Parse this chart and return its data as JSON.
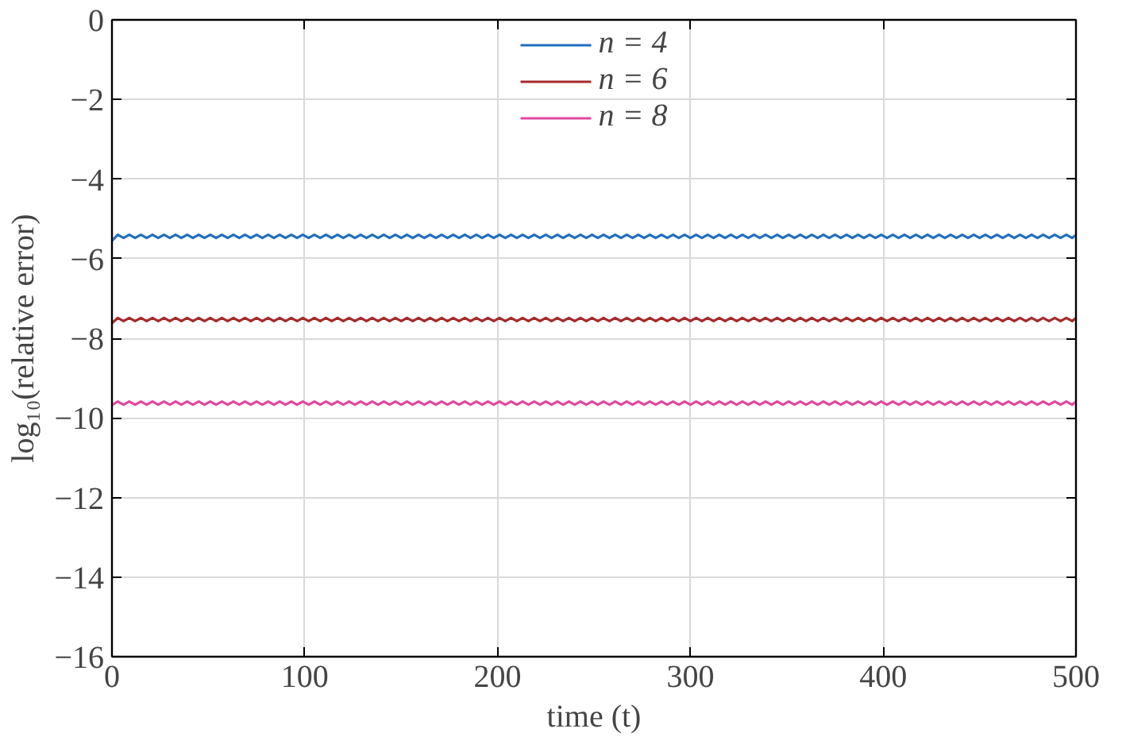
{
  "chart_data": {
    "type": "line",
    "xlabel": "time (t)",
    "ylabel": "log₁₀(relative error)",
    "xlim": [
      0,
      500
    ],
    "ylim": [
      -16,
      0
    ],
    "xticks": [
      0,
      100,
      200,
      300,
      400,
      500
    ],
    "yticks": [
      -16,
      -14,
      -12,
      -10,
      -8,
      -6,
      -4,
      -2,
      0
    ],
    "grid": true,
    "legend": "top",
    "line_style": "solid",
    "marker": "none",
    "x": [
      0,
      3,
      6,
      9,
      12,
      15,
      18,
      21,
      24,
      27,
      30,
      33,
      36,
      39,
      42,
      45,
      48,
      51,
      54,
      57,
      60,
      63,
      66,
      69,
      72,
      75,
      78,
      81,
      84,
      87,
      90,
      93,
      96,
      99,
      102,
      105,
      108,
      111,
      114,
      117,
      120,
      123,
      126,
      129,
      132,
      135,
      138,
      141,
      144,
      147,
      150,
      153,
      156,
      159,
      162,
      165,
      168,
      171,
      174,
      177,
      180,
      183,
      186,
      189,
      192,
      195,
      198,
      201,
      204,
      207,
      210,
      213,
      216,
      219,
      222,
      225,
      228,
      231,
      234,
      237,
      240,
      243,
      246,
      249,
      252,
      255,
      258,
      261,
      264,
      267,
      270,
      273,
      276,
      279,
      282,
      285,
      288,
      291,
      294,
      297,
      300,
      303,
      306,
      309,
      312,
      315,
      318,
      321,
      324,
      327,
      330,
      333,
      336,
      339,
      342,
      345,
      348,
      351,
      354,
      357,
      360,
      363,
      366,
      369,
      372,
      375,
      378,
      381,
      384,
      387,
      390,
      393,
      396,
      399,
      402,
      405,
      408,
      411,
      414,
      417,
      420,
      423,
      426,
      429,
      432,
      435,
      438,
      441,
      444,
      447,
      450,
      453,
      456,
      459,
      462,
      465,
      468,
      471,
      474,
      477,
      480,
      483,
      486,
      489,
      492,
      495,
      498,
      500
    ],
    "series": [
      {
        "name": "n = 4",
        "color": "#1f6fbf",
        "values": [
          -5.55,
          -5.4,
          -5.48,
          -5.4,
          -5.48,
          -5.4,
          -5.48,
          -5.4,
          -5.48,
          -5.4,
          -5.48,
          -5.4,
          -5.48,
          -5.4,
          -5.48,
          -5.4,
          -5.48,
          -5.4,
          -5.48,
          -5.4,
          -5.48,
          -5.4,
          -5.48,
          -5.4,
          -5.48,
          -5.4,
          -5.48,
          -5.4,
          -5.48,
          -5.4,
          -5.48,
          -5.4,
          -5.48,
          -5.4,
          -5.48,
          -5.4,
          -5.48,
          -5.4,
          -5.48,
          -5.4,
          -5.48,
          -5.4,
          -5.48,
          -5.4,
          -5.48,
          -5.4,
          -5.48,
          -5.4,
          -5.48,
          -5.4,
          -5.48,
          -5.4,
          -5.48,
          -5.4,
          -5.48,
          -5.4,
          -5.48,
          -5.4,
          -5.48,
          -5.4,
          -5.48,
          -5.4,
          -5.48,
          -5.4,
          -5.48,
          -5.4,
          -5.48,
          -5.4,
          -5.48,
          -5.4,
          -5.48,
          -5.4,
          -5.48,
          -5.4,
          -5.48,
          -5.4,
          -5.48,
          -5.4,
          -5.48,
          -5.4,
          -5.48,
          -5.4,
          -5.48,
          -5.4,
          -5.48,
          -5.4,
          -5.48,
          -5.4,
          -5.48,
          -5.4,
          -5.48,
          -5.4,
          -5.48,
          -5.4,
          -5.48,
          -5.4,
          -5.48,
          -5.4,
          -5.48,
          -5.4,
          -5.48,
          -5.4,
          -5.48,
          -5.4,
          -5.48,
          -5.4,
          -5.48,
          -5.4,
          -5.48,
          -5.4,
          -5.48,
          -5.4,
          -5.48,
          -5.4,
          -5.48,
          -5.4,
          -5.48,
          -5.4,
          -5.48,
          -5.4,
          -5.48,
          -5.4,
          -5.48,
          -5.4,
          -5.48,
          -5.4,
          -5.48,
          -5.4,
          -5.48,
          -5.4,
          -5.48,
          -5.4,
          -5.48,
          -5.4,
          -5.48,
          -5.4,
          -5.48,
          -5.4,
          -5.48,
          -5.4,
          -5.48,
          -5.4,
          -5.48,
          -5.4,
          -5.48,
          -5.4,
          -5.48,
          -5.4,
          -5.48,
          -5.4,
          -5.48,
          -5.4,
          -5.48,
          -5.4,
          -5.48,
          -5.4,
          -5.48,
          -5.4,
          -5.48,
          -5.4,
          -5.48,
          -5.4,
          -5.48,
          -5.4,
          -5.48,
          -5.4,
          -5.48,
          -5.4
        ]
      },
      {
        "name": "n = 6",
        "color": "#a52a2a",
        "values": [
          -7.62,
          -7.49,
          -7.57,
          -7.49,
          -7.57,
          -7.49,
          -7.57,
          -7.49,
          -7.57,
          -7.49,
          -7.57,
          -7.49,
          -7.57,
          -7.49,
          -7.57,
          -7.49,
          -7.57,
          -7.49,
          -7.57,
          -7.49,
          -7.57,
          -7.49,
          -7.57,
          -7.49,
          -7.57,
          -7.49,
          -7.57,
          -7.49,
          -7.57,
          -7.49,
          -7.57,
          -7.49,
          -7.57,
          -7.49,
          -7.57,
          -7.49,
          -7.57,
          -7.49,
          -7.57,
          -7.49,
          -7.57,
          -7.49,
          -7.57,
          -7.49,
          -7.57,
          -7.49,
          -7.57,
          -7.49,
          -7.57,
          -7.49,
          -7.57,
          -7.49,
          -7.57,
          -7.49,
          -7.57,
          -7.49,
          -7.57,
          -7.49,
          -7.57,
          -7.49,
          -7.57,
          -7.49,
          -7.57,
          -7.49,
          -7.57,
          -7.49,
          -7.57,
          -7.49,
          -7.57,
          -7.49,
          -7.57,
          -7.49,
          -7.57,
          -7.49,
          -7.57,
          -7.49,
          -7.57,
          -7.49,
          -7.57,
          -7.49,
          -7.57,
          -7.49,
          -7.57,
          -7.49,
          -7.57,
          -7.49,
          -7.57,
          -7.49,
          -7.57,
          -7.49,
          -7.57,
          -7.49,
          -7.57,
          -7.49,
          -7.57,
          -7.49,
          -7.57,
          -7.49,
          -7.57,
          -7.49,
          -7.57,
          -7.49,
          -7.57,
          -7.49,
          -7.57,
          -7.49,
          -7.57,
          -7.49,
          -7.57,
          -7.49,
          -7.57,
          -7.49,
          -7.57,
          -7.49,
          -7.57,
          -7.49,
          -7.57,
          -7.49,
          -7.57,
          -7.49,
          -7.57,
          -7.49,
          -7.57,
          -7.49,
          -7.57,
          -7.49,
          -7.57,
          -7.49,
          -7.57,
          -7.49,
          -7.57,
          -7.49,
          -7.57,
          -7.49,
          -7.57,
          -7.49,
          -7.57,
          -7.49,
          -7.57,
          -7.49,
          -7.57,
          -7.49,
          -7.57,
          -7.49,
          -7.57,
          -7.49,
          -7.57,
          -7.49,
          -7.57,
          -7.49,
          -7.57,
          -7.49,
          -7.57,
          -7.49,
          -7.57,
          -7.49,
          -7.57,
          -7.49,
          -7.57,
          -7.49,
          -7.57,
          -7.49,
          -7.57,
          -7.49,
          -7.57,
          -7.49,
          -7.57,
          -7.49
        ]
      },
      {
        "name": "n = 8",
        "color": "#e0489e",
        "values": [
          -9.68,
          -9.59,
          -9.67,
          -9.59,
          -9.67,
          -9.59,
          -9.67,
          -9.59,
          -9.67,
          -9.59,
          -9.67,
          -9.59,
          -9.67,
          -9.59,
          -9.67,
          -9.59,
          -9.67,
          -9.59,
          -9.67,
          -9.59,
          -9.67,
          -9.59,
          -9.67,
          -9.59,
          -9.67,
          -9.59,
          -9.67,
          -9.59,
          -9.67,
          -9.59,
          -9.67,
          -9.59,
          -9.67,
          -9.59,
          -9.67,
          -9.59,
          -9.67,
          -9.59,
          -9.67,
          -9.59,
          -9.67,
          -9.59,
          -9.67,
          -9.59,
          -9.67,
          -9.59,
          -9.67,
          -9.59,
          -9.67,
          -9.59,
          -9.67,
          -9.59,
          -9.67,
          -9.59,
          -9.67,
          -9.59,
          -9.67,
          -9.59,
          -9.67,
          -9.59,
          -9.67,
          -9.59,
          -9.67,
          -9.59,
          -9.67,
          -9.59,
          -9.67,
          -9.59,
          -9.67,
          -9.59,
          -9.67,
          -9.59,
          -9.67,
          -9.59,
          -9.67,
          -9.59,
          -9.67,
          -9.59,
          -9.67,
          -9.59,
          -9.67,
          -9.59,
          -9.67,
          -9.59,
          -9.67,
          -9.59,
          -9.67,
          -9.59,
          -9.67,
          -9.59,
          -9.67,
          -9.59,
          -9.67,
          -9.59,
          -9.67,
          -9.59,
          -9.67,
          -9.59,
          -9.67,
          -9.59,
          -9.67,
          -9.59,
          -9.67,
          -9.59,
          -9.67,
          -9.59,
          -9.67,
          -9.59,
          -9.67,
          -9.59,
          -9.67,
          -9.59,
          -9.67,
          -9.59,
          -9.67,
          -9.59,
          -9.67,
          -9.59,
          -9.67,
          -9.59,
          -9.67,
          -9.59,
          -9.67,
          -9.59,
          -9.67,
          -9.59,
          -9.67,
          -9.59,
          -9.67,
          -9.59,
          -9.67,
          -9.59,
          -9.67,
          -9.59,
          -9.67,
          -9.59,
          -9.67,
          -9.59,
          -9.67,
          -9.59,
          -9.67,
          -9.59,
          -9.67,
          -9.59,
          -9.67,
          -9.59,
          -9.67,
          -9.59,
          -9.67,
          -9.59,
          -9.67,
          -9.59,
          -9.67,
          -9.59,
          -9.67,
          -9.59,
          -9.67,
          -9.59,
          -9.67,
          -9.59,
          -9.67,
          -9.59,
          -9.67,
          -9.59,
          -9.67,
          -9.59,
          -9.67,
          -9.59
        ]
      }
    ]
  }
}
